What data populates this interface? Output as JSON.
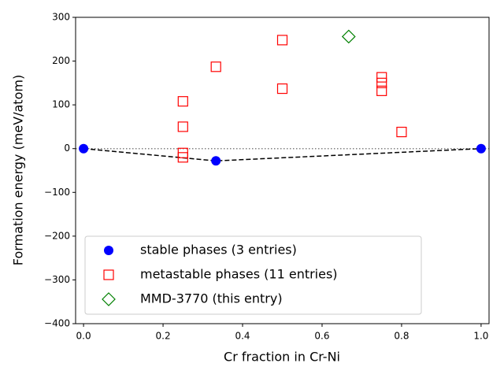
{
  "chart_data": {
    "type": "scatter",
    "xlabel": "Cr fraction in Cr-Ni",
    "ylabel": "Formation energy (meV/atom)",
    "xlim": [
      -0.02,
      1.02
    ],
    "ylim": [
      -400,
      300
    ],
    "xticks": [
      {
        "value": 0,
        "label": "0.0"
      },
      0.2,
      0.4,
      0.6,
      0.8,
      {
        "value": 1,
        "label": "1.0"
      }
    ],
    "yticks": [
      {
        "value": -400,
        "label": "−400"
      },
      {
        "value": -300,
        "label": "−300"
      },
      {
        "value": -200,
        "label": "−200"
      },
      {
        "value": -100,
        "label": "−100"
      },
      0,
      100,
      200,
      300
    ],
    "hline": 0,
    "legend": "lower left",
    "series": [
      {
        "name": "stable phases (3 entries)",
        "color": "#0000ff",
        "marker": "circle",
        "hull": true,
        "x": [
          0,
          0.333,
          1
        ],
        "values": [
          0,
          -28,
          0
        ]
      },
      {
        "name": "metastable phases (11 entries)",
        "color": "#ff0000",
        "marker": "square",
        "x": [
          0.25,
          0.25,
          0.25,
          0.25,
          0.333,
          0.5,
          0.5,
          0.75,
          0.75,
          0.75,
          0.8
        ],
        "values": [
          108,
          50,
          -10,
          -20,
          187,
          248,
          137,
          163,
          150,
          132,
          38
        ]
      },
      {
        "name": "MMD-3770 (this entry)",
        "color": "#008000",
        "marker": "diamond",
        "x": [
          0.667
        ],
        "values": [
          256
        ]
      }
    ]
  }
}
